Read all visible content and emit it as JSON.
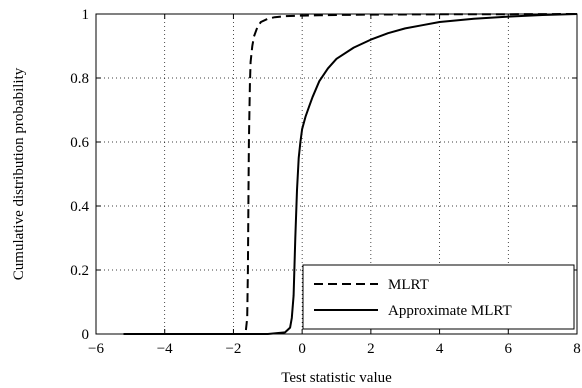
{
  "chart_data": {
    "type": "line",
    "xlabel": "Test statistic value",
    "ylabel": "Cumulative distribution probability",
    "xlim": [
      -6,
      8
    ],
    "ylim": [
      0,
      1
    ],
    "xticks": [
      -6,
      -4,
      -2,
      0,
      2,
      4,
      6,
      8
    ],
    "yticks": [
      0,
      0.2,
      0.4,
      0.6,
      0.8,
      1
    ],
    "grid": true,
    "legend_position": "bottom-right",
    "series": [
      {
        "name": "MLRT",
        "style": "dashed",
        "color": "#000000",
        "x": [
          -5.2,
          -1.65,
          -1.6,
          -1.58,
          -1.56,
          -1.55,
          -1.52,
          -1.5,
          -1.45,
          -1.4,
          -1.3,
          -1.2,
          -1.0,
          -0.8,
          -0.5,
          0.0,
          0.5,
          1.0,
          2.0,
          4.0,
          6.0,
          8.0
        ],
        "y": [
          0.0,
          0.0,
          0.05,
          0.2,
          0.45,
          0.6,
          0.78,
          0.85,
          0.9,
          0.93,
          0.96,
          0.975,
          0.985,
          0.99,
          0.993,
          0.995,
          0.996,
          0.997,
          0.998,
          0.999,
          0.9995,
          1.0
        ]
      },
      {
        "name": "Approximate MLRT",
        "style": "solid",
        "color": "#000000",
        "x": [
          -5.2,
          -1.0,
          -0.5,
          -0.35,
          -0.3,
          -0.25,
          -0.2,
          -0.15,
          -0.1,
          -0.05,
          0.0,
          0.1,
          0.2,
          0.3,
          0.5,
          0.75,
          1.0,
          1.5,
          2.0,
          2.5,
          3.0,
          3.5,
          4.0,
          5.0,
          6.0,
          7.0,
          8.0
        ],
        "y": [
          0.0,
          0.0,
          0.005,
          0.02,
          0.05,
          0.12,
          0.3,
          0.45,
          0.55,
          0.6,
          0.64,
          0.68,
          0.71,
          0.74,
          0.79,
          0.83,
          0.86,
          0.895,
          0.92,
          0.94,
          0.955,
          0.965,
          0.975,
          0.985,
          0.992,
          0.997,
          1.0
        ]
      }
    ]
  }
}
